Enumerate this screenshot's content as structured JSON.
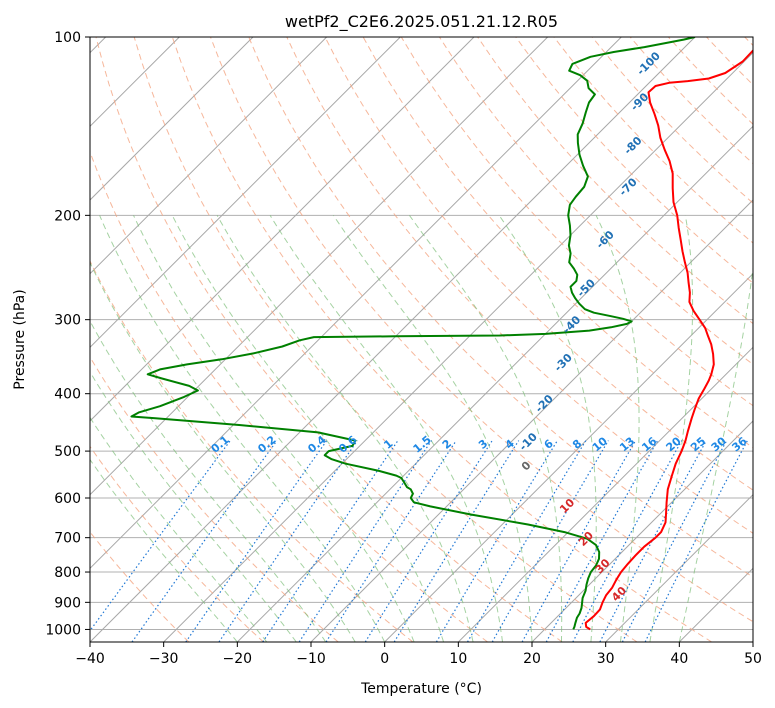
{
  "chart_data": {
    "type": "line",
    "title": "wetPf2_C2E6.2025.051.21.12.R05",
    "xlabel": "Temperature (°C)",
    "ylabel": "Pressure (hPa)",
    "xlim": [
      -40,
      50
    ],
    "ylim": [
      1050,
      100
    ],
    "y_scale": "log",
    "xticks": [
      -40,
      -30,
      -20,
      -10,
      0,
      10,
      20,
      30,
      40,
      50
    ],
    "yticks": [
      100,
      200,
      300,
      400,
      500,
      600,
      700,
      800,
      900,
      1000
    ],
    "series": [
      {
        "color": "#ff0000",
        "points": [
          [
            26.2,
            1000
          ],
          [
            25.3,
            990
          ],
          [
            24.7,
            975
          ],
          [
            24.9,
            950
          ],
          [
            24.8,
            925
          ],
          [
            24.2,
            900
          ],
          [
            23.7,
            875
          ],
          [
            23.5,
            850
          ],
          [
            23.0,
            825
          ],
          [
            22.6,
            800
          ],
          [
            22.4,
            775
          ],
          [
            22.3,
            750
          ],
          [
            22.3,
            725
          ],
          [
            22.6,
            700
          ],
          [
            22.6,
            685
          ],
          [
            21.9,
            660
          ],
          [
            20.9,
            640
          ],
          [
            19.3,
            610
          ],
          [
            17.7,
            580
          ],
          [
            16.4,
            550
          ],
          [
            15.3,
            525
          ],
          [
            14.4,
            500
          ],
          [
            13.5,
            480
          ],
          [
            12.5,
            462
          ],
          [
            11.3,
            440
          ],
          [
            10.5,
            425
          ],
          [
            9.6,
            408
          ],
          [
            9.0,
            392
          ],
          [
            8.5,
            380
          ],
          [
            8.0,
            371
          ],
          [
            7.0,
            357
          ],
          [
            5.5,
            343
          ],
          [
            3.9,
            330
          ],
          [
            2.4,
            320
          ],
          [
            0.9,
            310
          ],
          [
            -1.0,
            300
          ],
          [
            -3.0,
            290
          ],
          [
            -4.8,
            280
          ],
          [
            -6.0,
            270
          ],
          [
            -7.5,
            260
          ],
          [
            -9.0,
            250
          ],
          [
            -10.8,
            240
          ],
          [
            -12.6,
            230
          ],
          [
            -14.4,
            220
          ],
          [
            -16.3,
            210
          ],
          [
            -18.2,
            200
          ],
          [
            -20.5,
            190
          ],
          [
            -22.5,
            180
          ],
          [
            -24.5,
            170
          ],
          [
            -26.6,
            162
          ],
          [
            -28.8,
            155
          ],
          [
            -31.0,
            148
          ],
          [
            -33.0,
            141
          ],
          [
            -35.0,
            135
          ],
          [
            -37.2,
            129
          ],
          [
            -38.8,
            124
          ],
          [
            -38.7,
            121
          ],
          [
            -37.3,
            119.5
          ],
          [
            -35.0,
            118.7
          ],
          [
            -32.5,
            117.5
          ],
          [
            -31.0,
            115
          ],
          [
            -30.2,
            110
          ],
          [
            -30.3,
            105
          ],
          [
            -30.5,
            100
          ]
        ]
      },
      {
        "color": "#008000",
        "points": [
          [
            23.9,
            1000
          ],
          [
            23.7,
            990
          ],
          [
            23.3,
            975
          ],
          [
            22.8,
            955
          ],
          [
            22.6,
            940
          ],
          [
            22.1,
            920
          ],
          [
            21.6,
            905
          ],
          [
            20.9,
            885
          ],
          [
            20.3,
            860
          ],
          [
            19.6,
            840
          ],
          [
            19.0,
            820
          ],
          [
            18.5,
            800
          ],
          [
            18.3,
            780
          ],
          [
            17.8,
            760
          ],
          [
            16.9,
            740
          ],
          [
            15.5,
            720
          ],
          [
            13.5,
            703
          ],
          [
            9.5,
            685
          ],
          [
            3.5,
            665
          ],
          [
            -5.5,
            640
          ],
          [
            -12.2,
            620
          ],
          [
            -15.0,
            610
          ],
          [
            -16.0,
            600
          ],
          [
            -16.3,
            590
          ],
          [
            -17.2,
            580
          ],
          [
            -18.0,
            575
          ],
          [
            -19.0,
            565
          ],
          [
            -20.0,
            555
          ],
          [
            -21.0,
            550
          ],
          [
            -24.0,
            540
          ],
          [
            -29.5,
            525
          ],
          [
            -32.0,
            516
          ],
          [
            -33.5,
            508
          ],
          [
            -33.5,
            500
          ],
          [
            -31.0,
            490
          ],
          [
            -31.3,
            480
          ],
          [
            -37.5,
            465
          ],
          [
            -49.0,
            452
          ],
          [
            -61.5,
            440
          ],
          [
            -65.0,
            437
          ],
          [
            -64.5,
            430
          ],
          [
            -62.5,
            420
          ],
          [
            -60.5,
            405
          ],
          [
            -59.5,
            395
          ],
          [
            -61.3,
            388
          ],
          [
            -66.0,
            377
          ],
          [
            -68.5,
            371
          ],
          [
            -67.5,
            364
          ],
          [
            -64.5,
            357
          ],
          [
            -60.5,
            350
          ],
          [
            -57.0,
            342
          ],
          [
            -54.0,
            333
          ],
          [
            -52.5,
            325
          ],
          [
            -51.0,
            321
          ],
          [
            -40.0,
            320
          ],
          [
            -26.0,
            319
          ],
          [
            -20.0,
            317
          ],
          [
            -14.5,
            313
          ],
          [
            -12.0,
            309
          ],
          [
            -10.3,
            305
          ],
          [
            -10.0,
            302
          ],
          [
            -11.5,
            299
          ],
          [
            -13.5,
            296
          ],
          [
            -16.3,
            292
          ],
          [
            -18.0,
            288
          ],
          [
            -19.5,
            282
          ],
          [
            -20.8,
            276
          ],
          [
            -22.0,
            270
          ],
          [
            -23.0,
            264
          ],
          [
            -23.0,
            258
          ],
          [
            -23.7,
            252
          ],
          [
            -25.0,
            246
          ],
          [
            -26.5,
            240
          ],
          [
            -27.5,
            232
          ],
          [
            -28.8,
            225
          ],
          [
            -30.0,
            216
          ],
          [
            -31.4,
            208
          ],
          [
            -33.0,
            200
          ],
          [
            -34.2,
            192
          ],
          [
            -34.5,
            186
          ],
          [
            -34.7,
            179
          ],
          [
            -35.6,
            172
          ],
          [
            -37.7,
            165
          ],
          [
            -39.7,
            158
          ],
          [
            -41.5,
            151
          ],
          [
            -42.7,
            146
          ],
          [
            -43.5,
            140
          ],
          [
            -44.6,
            134
          ],
          [
            -45.5,
            129
          ],
          [
            -45.8,
            125
          ],
          [
            -47.5,
            122
          ],
          [
            -48.7,
            118.5
          ],
          [
            -50.4,
            116
          ],
          [
            -52.5,
            114
          ],
          [
            -53.0,
            111
          ],
          [
            -51.5,
            108
          ],
          [
            -49.0,
            106
          ],
          [
            -45.5,
            104
          ],
          [
            -41.2,
            101
          ],
          [
            -40.0,
            100
          ]
        ]
      }
    ],
    "dry_adiabat_labels": [
      "-100",
      "-90",
      "-80",
      "-70",
      "-60",
      "-50",
      "-40",
      "-30",
      "-20",
      "-10"
    ],
    "moist_adiabat_labels": [
      "0",
      "10",
      "20",
      "30",
      "40"
    ],
    "mixing_ratio_labels": [
      "0.1",
      "0.2",
      "0.4",
      "0.6",
      "1",
      "1.5",
      "2",
      "3",
      "4",
      "6",
      "8",
      "10",
      "13",
      "16",
      "20",
      "25",
      "30",
      "36"
    ],
    "grid": true
  },
  "colors": {
    "temperature": "#ff0000",
    "dewpoint": "#008000",
    "dry_adiabat": "#f4a582",
    "moist_adiabat": "#7fbf7b",
    "mixing_ratio": "#1f77d4",
    "isotherm": "#808080",
    "dry_label": "#2171b5",
    "moist_label": "#d62728",
    "mixing_label": "#1e88e5"
  }
}
